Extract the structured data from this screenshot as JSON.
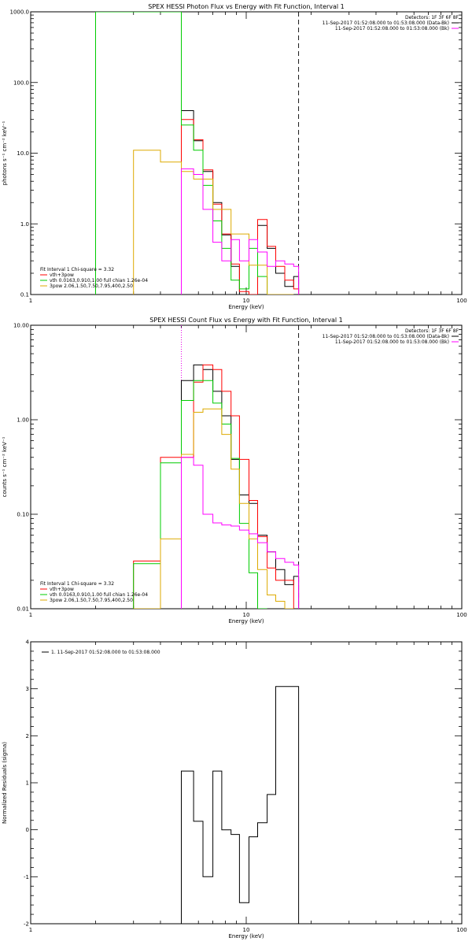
{
  "chart_data": [
    {
      "type": "line",
      "title": "SPEX HESSI Photon Flux vs Energy with Fit Function, Interval 1",
      "xlabel": "Energy (keV)",
      "ylabel": "photons s⁻¹ cm⁻² keV⁻¹",
      "x_scale": "log",
      "y_scale": "log",
      "xlim": [
        1,
        100
      ],
      "ylim": [
        0.1,
        1000
      ],
      "x_ticks": [
        "1",
        "10",
        "100"
      ],
      "y_ticks": [
        "0.1",
        "1.0",
        "10.0",
        "100.0",
        "1000.0"
      ],
      "grid": false,
      "vlines": [
        {
          "x": 5,
          "style": "dotted",
          "color": "#000000"
        },
        {
          "x": 5,
          "style": "dotted",
          "color": "#ff00ff"
        },
        {
          "x": 17.5,
          "style": "dashed",
          "color": "#000000"
        }
      ],
      "legend_top": {
        "header": "Detectors: 1F 3F 6F 8F",
        "entries": [
          {
            "label": "11-Sep-2017 01:52:08.000 to 01:53:08.000 (Data-Bk)",
            "color": "#000000"
          },
          {
            "label": "11-Sep-2017 01:52:08.000 to 01:53:08.000 (Bk)",
            "color": "#ff00ff"
          }
        ]
      },
      "legend_bottom": {
        "header": "Fit Interval 1   Chi-square = 3.32",
        "entries": [
          {
            "label": "vth+3pow",
            "color": "#ff0000"
          },
          {
            "label": "vth 0.0163,0.910,1.00  full chian 1.26e-04",
            "color": "#00cc00"
          },
          {
            "label": "3pow 2.06,1.50,7.50,7.95,400,2.50",
            "color": "#ddaa00"
          }
        ]
      },
      "series": [
        {
          "color": "#000000",
          "edges": [
            5,
            5.7,
            6.3,
            7,
            7.7,
            8.5,
            9.3,
            10.3,
            11.3,
            12.5,
            13.7,
            15.1,
            16.6,
            17.5
          ],
          "values": [
            40,
            15,
            5.5,
            2,
            0.7,
            0.25,
            0.1,
            0.05,
            0.95,
            0.45,
            0.2,
            0.13,
            0.18
          ]
        },
        {
          "color": "#ff0000",
          "edges": [
            5,
            5.7,
            6.3,
            7,
            7.7,
            8.5,
            9.3,
            10.3,
            11.3,
            12.5,
            13.7,
            15.1,
            16.6,
            17.5
          ],
          "values": [
            30,
            15.5,
            5.8,
            1.9,
            0.72,
            0.27,
            0.11,
            0.05,
            1.15,
            0.48,
            0.25,
            0.16,
            0.12
          ]
        },
        {
          "color": "#00cc00",
          "edges": [
            2,
            3,
            4,
            5,
            5.7,
            6.3,
            7,
            7.7,
            8.5,
            9.3,
            10.3,
            11.3,
            12.5
          ],
          "values": [
            1000,
            1000,
            1000,
            25,
            11,
            3.5,
            1.1,
            0.45,
            0.16,
            0.12,
            0.45,
            0.18
          ]
        },
        {
          "color": "#ddaa00",
          "edges": [
            3,
            4,
            5,
            5.7,
            6.3,
            7,
            7.7,
            8.5,
            9.3,
            10.3,
            11.3,
            12.5,
            13.7,
            15.1,
            16.6
          ],
          "values": [
            11,
            7.5,
            5.5,
            4.3,
            4.3,
            1.6,
            1.6,
            0.72,
            0.72,
            0.26,
            0.26,
            0.095,
            0.095,
            0.1
          ]
        },
        {
          "color": "#ff00ff",
          "edges": [
            5,
            5.7,
            6.3,
            7,
            7.7,
            8.5,
            9.3,
            10.3,
            11.3,
            12.5,
            13.7,
            15.1,
            16.6,
            17.5
          ],
          "values": [
            6,
            5,
            1.6,
            0.55,
            0.3,
            0.6,
            0.3,
            0.6,
            0.4,
            0.25,
            0.3,
            0.27,
            0.25
          ]
        }
      ]
    },
    {
      "type": "line",
      "title": "SPEX HESSI Count Flux vs Energy with Fit Function, Interval 1",
      "xlabel": "Energy (keV)",
      "ylabel": "counts s⁻¹ cm⁻² keV⁻¹",
      "x_scale": "log",
      "y_scale": "log",
      "xlim": [
        1,
        100
      ],
      "ylim": [
        0.01,
        10
      ],
      "x_ticks": [
        "1",
        "10",
        "100"
      ],
      "y_ticks": [
        "0.01",
        "0.10",
        "1.00",
        "10.00"
      ],
      "grid": false,
      "vlines": [
        {
          "x": 5,
          "style": "dotted",
          "color": "#000000"
        },
        {
          "x": 5,
          "style": "dotted",
          "color": "#ff00ff"
        },
        {
          "x": 17.5,
          "style": "dashed",
          "color": "#000000"
        }
      ],
      "legend_top": {
        "header": "Detectors: 1F 3F 6F 8F",
        "entries": [
          {
            "label": "11-Sep-2017 01:52:08.000 to 01:53:08.000 (Data-Bk)",
            "color": "#000000"
          },
          {
            "label": "11-Sep-2017 01:52:08.000 to 01:53:08.000 (Bk)",
            "color": "#ff00ff"
          }
        ]
      },
      "legend_bottom": {
        "header": "Fit Interval 1   Chi-square = 3.32",
        "entries": [
          {
            "label": "vth+3pow",
            "color": "#ff0000"
          },
          {
            "label": "vth 0.0163,0.910,1.00  full chian 1.26e-04",
            "color": "#00cc00"
          },
          {
            "label": "3pow 2.06,1.50,7.50,7.95,400,2.50",
            "color": "#ddaa00"
          }
        ]
      },
      "series": [
        {
          "color": "#000000",
          "edges": [
            5,
            5.7,
            6.3,
            7,
            7.7,
            8.5,
            9.3,
            10.3,
            11.3,
            12.5,
            13.7,
            15.1,
            16.6,
            17.5
          ],
          "values": [
            2.6,
            3.8,
            3.4,
            2,
            1.1,
            0.38,
            0.16,
            0.13,
            0.06,
            0.04,
            0.026,
            0.018,
            0.022
          ]
        },
        {
          "color": "#ff0000",
          "edges": [
            3,
            4,
            5,
            5.7,
            6.3,
            7,
            7.7,
            8.5,
            9.3,
            10.3,
            11.3,
            12.5,
            13.7,
            15.1,
            16.6
          ],
          "values": [
            0.032,
            0.4,
            0.4,
            2.5,
            3.8,
            3.4,
            2,
            1.1,
            0.38,
            0.14,
            0.058,
            0.027,
            0.02,
            0.02
          ]
        },
        {
          "color": "#00cc00",
          "edges": [
            3,
            4,
            5,
            5.7,
            6.3,
            7,
            7.7,
            8.5,
            9.3,
            10.3,
            11.3,
            12.5
          ],
          "values": [
            0.03,
            0.35,
            1.6,
            2.6,
            2.6,
            1.5,
            0.9,
            0.39,
            0.08,
            0.024,
            0.01
          ]
        },
        {
          "color": "#ddaa00",
          "edges": [
            3,
            4,
            5,
            5.7,
            6.3,
            7,
            7.7,
            8.5,
            9.3,
            10.3,
            11.3,
            12.5,
            13.7,
            15.1,
            16.6
          ],
          "values": [
            0.01,
            0.055,
            0.43,
            1.2,
            1.3,
            1.3,
            0.7,
            0.3,
            0.13,
            0.055,
            0.026,
            0.014,
            0.012,
            0.01
          ]
        },
        {
          "color": "#ff00ff",
          "edges": [
            5,
            5.7,
            6.3,
            7,
            7.7,
            8.5,
            9.3,
            10.3,
            11.3,
            12.5,
            13.7,
            15.1,
            16.6,
            17.5
          ],
          "values": [
            0.4,
            0.33,
            0.1,
            0.081,
            0.077,
            0.075,
            0.068,
            0.062,
            0.05,
            0.04,
            0.034,
            0.031,
            0.029
          ]
        }
      ]
    },
    {
      "type": "line",
      "title": "",
      "xlabel": "Energy (keV)",
      "ylabel": "Normalized Residuals (sigma)",
      "x_scale": "log",
      "y_scale": "linear",
      "xlim": [
        1,
        100
      ],
      "ylim": [
        -2,
        4
      ],
      "x_ticks": [
        "1",
        "10",
        "100"
      ],
      "y_ticks": [
        "-2",
        "-1",
        "0",
        "1",
        "2",
        "3",
        "4"
      ],
      "grid": false,
      "vlines": [],
      "legend_top": {
        "header": "",
        "entries": [
          {
            "label": "1. 11-Sep-2017 01:52:08.000 to 01:53:08.000",
            "color": "#000000"
          }
        ]
      },
      "legend_bottom": {
        "header": "",
        "entries": []
      },
      "series": [
        {
          "color": "#000000",
          "edges": [
            5,
            5.7,
            6.3,
            7,
            7.7,
            8.5,
            9.3,
            10.3,
            11.3,
            12.5,
            13.7,
            15.1,
            16.6,
            17.5
          ],
          "values": [
            1.25,
            0.18,
            -1.0,
            1.25,
            0.0,
            -0.1,
            -1.55,
            -0.15,
            0.15,
            0.75,
            3.05,
            3.05,
            3.05
          ]
        }
      ]
    }
  ]
}
